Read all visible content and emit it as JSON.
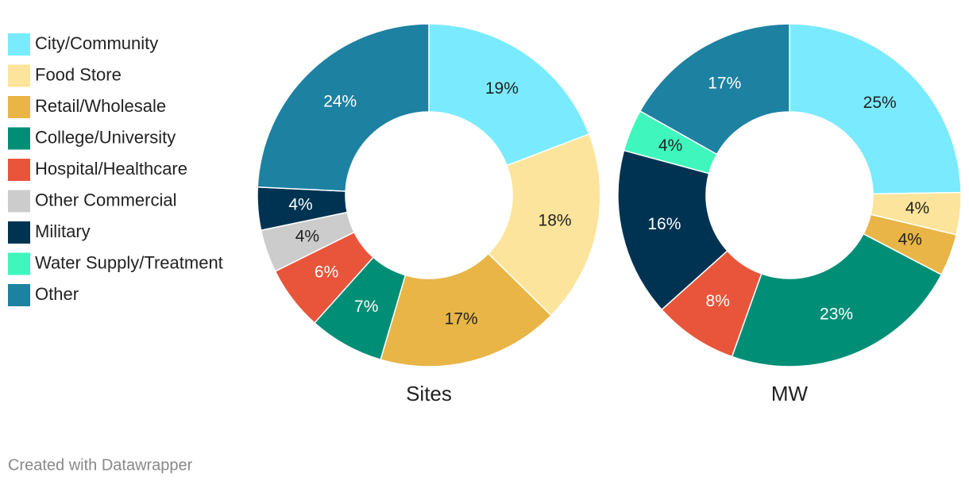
{
  "legend": {
    "items": [
      "City/Community",
      "Food Store",
      "Retail/Wholesale",
      "College/University",
      "Hospital/Healthcare",
      "Other Commercial",
      "Military",
      "Water Supply/Treatment",
      "Other"
    ],
    "colors": [
      "#7aebfe",
      "#fde49c",
      "#e8b546",
      "#018e76",
      "#e9553b",
      "#cccccc",
      "#003352",
      "#3ff7bc",
      "#1d81a2"
    ]
  },
  "chart_data": [
    {
      "type": "pie",
      "title": "Sites",
      "values": [
        19,
        18,
        17,
        7,
        6,
        4,
        4,
        null,
        24
      ],
      "value_labels": [
        "19%",
        "18%",
        "17%",
        "7%",
        "6%",
        "4%",
        "4%",
        null,
        "24%"
      ]
    },
    {
      "type": "pie",
      "title": "MW",
      "values": [
        25,
        4,
        4,
        23,
        8,
        null,
        16,
        4,
        17
      ],
      "value_labels": [
        "25%",
        "4%",
        "4%",
        "23%",
        "8%",
        null,
        "16%",
        "4%",
        "17%"
      ]
    }
  ],
  "footer": "Created with Datawrapper"
}
